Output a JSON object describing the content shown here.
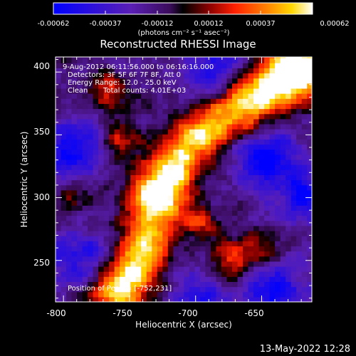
{
  "chart_data": {
    "type": "heatmap",
    "title": "Reconstructed RHESSI Image",
    "xlabel": "Heliocentric X (arcsec)",
    "ylabel": "Heliocentric Y (arcsec)",
    "xlim": [
      -806,
      -612
    ],
    "ylim": [
      217,
      412
    ],
    "x_ticks": [
      -800,
      -750,
      -700,
      -650
    ],
    "y_ticks": [
      250,
      300,
      350,
      400
    ],
    "colorbar": {
      "ticks": [
        "-0.00062",
        "-0.00037",
        "-0.00012",
        "0.00012",
        "0.00037",
        "0.00062"
      ],
      "range": [
        -0.00062,
        0.00062
      ],
      "unit_label": "(photons cm⁻² s⁻¹ asec⁻²)",
      "colors": [
        "#0000ff",
        "#5a1fb5",
        "#3a0c5a",
        "#000000",
        "#8a0000",
        "#ff2000",
        "#ff8000",
        "#ffd700",
        "#ffffff"
      ]
    },
    "annotations": {
      "time": "9-Aug-2012 06:11:56.000 to 06:16:16.000",
      "detectors": "Detectors: 3F 5F 6F 7F 8F, Att 0",
      "energy": "Energy Range: 12.0 - 25.0 keV",
      "clean": "Clean",
      "counts": "Total counts: 4.01E+03",
      "position": "Position of Peak = [-752,231]"
    },
    "emission_ridge": [
      {
        "x": -762,
        "y": 222,
        "i": 0.95
      },
      {
        "x": -748,
        "y": 240,
        "i": 0.75
      },
      {
        "x": -740,
        "y": 262,
        "i": 0.85
      },
      {
        "x": -733,
        "y": 292,
        "i": 0.92
      },
      {
        "x": -728,
        "y": 310,
        "i": 0.9
      },
      {
        "x": -716,
        "y": 330,
        "i": 0.78
      },
      {
        "x": -700,
        "y": 348,
        "i": 0.72
      },
      {
        "x": -680,
        "y": 362,
        "i": 0.74
      },
      {
        "x": -662,
        "y": 375,
        "i": 0.78
      },
      {
        "x": -645,
        "y": 385,
        "i": 0.83
      },
      {
        "x": -628,
        "y": 398,
        "i": 0.95
      },
      {
        "x": -618,
        "y": 405,
        "i": 0.9
      }
    ],
    "secondary_sources": [
      {
        "x": -768,
        "y": 383,
        "i": 0.6
      },
      {
        "x": -760,
        "y": 345,
        "i": 0.55
      },
      {
        "x": -700,
        "y": 280,
        "i": 0.5
      },
      {
        "x": -676,
        "y": 248,
        "i": 0.6
      },
      {
        "x": -655,
        "y": 255,
        "i": 0.55
      },
      {
        "x": -795,
        "y": 300,
        "i": 0.35
      }
    ],
    "negative_regions": [
      {
        "x": -795,
        "y": 335,
        "i": -0.7
      },
      {
        "x": -690,
        "y": 400,
        "i": -0.6
      },
      {
        "x": -650,
        "y": 330,
        "i": -0.75
      },
      {
        "x": -620,
        "y": 300,
        "i": -0.65
      },
      {
        "x": -640,
        "y": 225,
        "i": -0.7
      },
      {
        "x": -700,
        "y": 215,
        "i": -0.55
      },
      {
        "x": -790,
        "y": 250,
        "i": -0.6
      }
    ]
  },
  "footer": {
    "timestamp": "13-May-2022 12:28"
  }
}
